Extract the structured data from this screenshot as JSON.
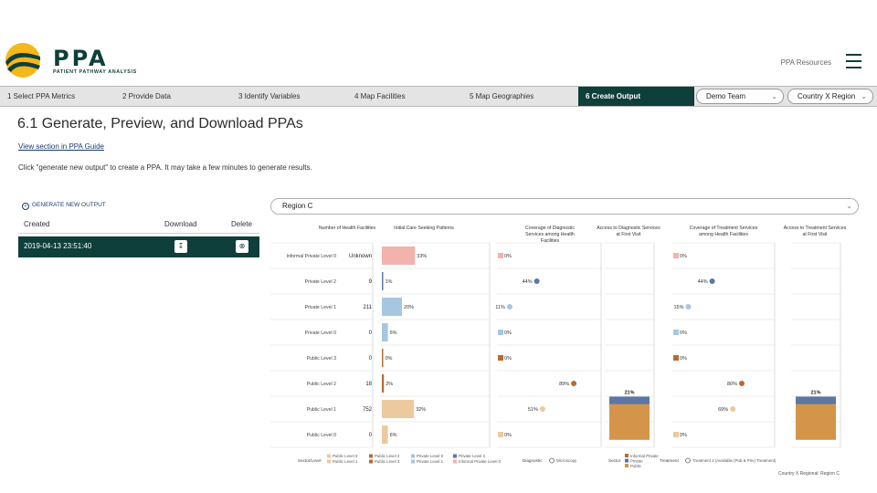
{
  "header": {
    "logo_text": "PPA",
    "logo_subtitle": "PATIENT PATHWAY ANALYSIS",
    "resources_link": "PPA Resources"
  },
  "steps": [
    {
      "label": "1 Select PPA Metrics",
      "active": false
    },
    {
      "label": "2 Provide Data",
      "active": false
    },
    {
      "label": "3 Identify Variables",
      "active": false
    },
    {
      "label": "4 Map Facilities",
      "active": false
    },
    {
      "label": "5 Map Geographies",
      "active": false
    },
    {
      "label": "6 Create Output",
      "active": true
    }
  ],
  "team_select": {
    "value": "Demo Team"
  },
  "country_select": {
    "value": "Country X Region"
  },
  "page": {
    "title": "6.1 Generate, Preview, and Download PPAs",
    "guide_link": "View section in PPA Guide",
    "instructions": "Click \"generate new output\" to create a PPA. It may take a few minutes to generate results."
  },
  "outputs": {
    "generate_label": "GENERATE NEW OUTPUT",
    "columns": [
      "Created",
      "Download",
      "Delete"
    ],
    "rows": [
      {
        "created": "2019-04-13 23:51:40"
      }
    ]
  },
  "region_select": {
    "value": "Region C"
  },
  "colors": {
    "brand": "#0f3f3a",
    "informal": "#f2b3ad",
    "private_level": "#5b77a6",
    "private_light": "#a7c6e0",
    "public_level": "#b86a35",
    "public_light": "#edc9a0",
    "tb_blue": "#5b77a6",
    "tb_orange": "#d4954a"
  },
  "chart_data": {
    "type": "table",
    "row_labels": [
      "Informal Private Level 0",
      "Private Level 2",
      "Private Level 1",
      "Private Level 0",
      "Public Level 3",
      "Public Level 2",
      "Public Level 1",
      "Public Level 0"
    ],
    "column_headers": [
      "Number of Health Facilities",
      "Initial Care Seeking Patterns",
      "Coverage of Diagnostic Services among Health Facilities",
      "Access to Diagnostic Services at First Visit",
      "Coverage of Treatment Services among Health Facilities",
      "Access to Treatment Services at First Visit"
    ],
    "health_facilities": [
      "Unknown",
      "9",
      "211",
      "0",
      "0",
      "18",
      "752",
      "0"
    ],
    "initial_care_seeking_pct": [
      33,
      1,
      20,
      6,
      0,
      2,
      32,
      6
    ],
    "diagnostic_coverage_pct": [
      0,
      44,
      11,
      0,
      0,
      89,
      51,
      0
    ],
    "treatment_coverage_pct": [
      0,
      44,
      15,
      0,
      0,
      80,
      69,
      0
    ],
    "access_diagnostic_total_pct": 21,
    "access_treatment_total_pct": 21,
    "legends": {
      "sector_level": {
        "title": "Sector/Level",
        "items": [
          "Public Level 0",
          "Public Level 1",
          "Public Level 2",
          "Public Level 3",
          "Private Level 0",
          "Private Level 1",
          "Private Level 2",
          "Informal Private Level 0"
        ]
      },
      "diagnostic": {
        "title": "Diagnostic",
        "items": [
          "Microscopy"
        ]
      },
      "sector": {
        "title": "Sector",
        "items": [
          "Informal Private",
          "Private",
          "Public"
        ]
      },
      "treatment": {
        "title": "Treatment",
        "items": [
          "Treatment 1 (Available (Pub & Priv) Treatment)"
        ]
      }
    },
    "footnote": "Country X Regional: Region C"
  }
}
